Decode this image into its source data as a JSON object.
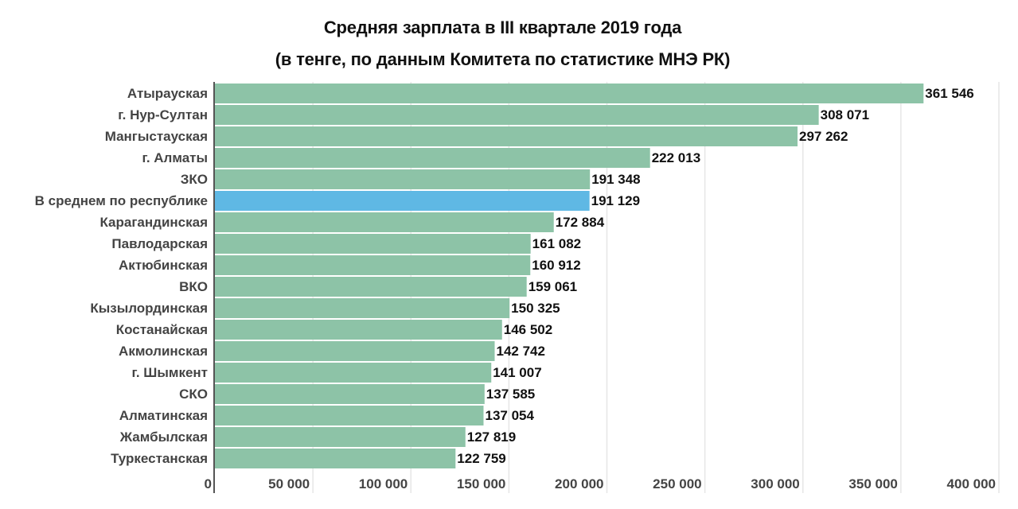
{
  "chart_data": {
    "type": "bar",
    "orientation": "horizontal",
    "title": "Средняя зарплата в III квартале 2019 года",
    "subtitle": "(в тенге, по данным Комитета по статистике МНЭ РК)",
    "xlabel": "",
    "ylabel": "",
    "xlim": [
      0,
      400000
    ],
    "grid": true,
    "ticks": [
      0,
      50000,
      100000,
      150000,
      200000,
      250000,
      300000,
      350000,
      400000
    ],
    "tick_labels": [
      "0",
      "50 000",
      "100 000",
      "150 000",
      "200 000",
      "250 000",
      "300 000",
      "350 000",
      "400 000"
    ],
    "categories": [
      "Атырауская",
      "г. Нур-Султан",
      "Мангыстауская",
      "г. Алматы",
      "ЗКО",
      "В среднем по республике",
      "Карагандинская",
      "Павлодарская",
      "Актюбинская",
      "ВКО",
      "Кызылординская",
      "Костанайская",
      "Акмолинская",
      "г. Шымкент",
      "СКО",
      "Алматинская",
      "Жамбылская",
      "Туркестанская"
    ],
    "values": [
      361546,
      308071,
      297262,
      222013,
      191348,
      191129,
      172884,
      161082,
      160912,
      159061,
      150325,
      146502,
      142742,
      141007,
      137585,
      137054,
      127819,
      122759
    ],
    "value_labels": [
      "361 546",
      "308 071",
      "297 262",
      "222 013",
      "191 348",
      "191 129",
      "172 884",
      "161 082",
      "160 912",
      "159 061",
      "150 325",
      "146 502",
      "142 742",
      "141 007",
      "137 585",
      "137 054",
      "127 819",
      "122 759"
    ],
    "highlight_index": 5,
    "colors": {
      "bar": "#8dc3a7",
      "highlight": "#5fb8e4",
      "grid": "#e6e6e6",
      "axis": "#555555"
    }
  }
}
